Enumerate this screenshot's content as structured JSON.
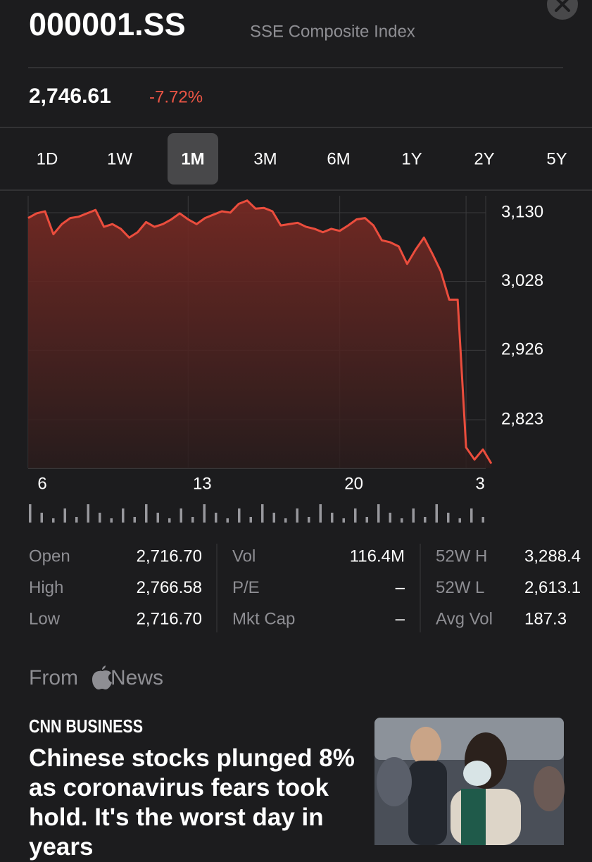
{
  "header": {
    "symbol": "000001.SS",
    "name": "SSE Composite Index",
    "price": "2,746.61",
    "change": "-7.72%"
  },
  "tabs": [
    "1D",
    "1W",
    "1M",
    "3M",
    "6M",
    "1Y",
    "2Y",
    "5Y"
  ],
  "selected_tab": 2,
  "chart_data": {
    "type": "line",
    "fill_area": true,
    "grid": true,
    "x": [
      0,
      1,
      2,
      3,
      4,
      5,
      6,
      7,
      8,
      9,
      10,
      11,
      12,
      13,
      14,
      15,
      16,
      17,
      18,
      19,
      20,
      21,
      22,
      23,
      24,
      25,
      26,
      27,
      28,
      29,
      30,
      31,
      32,
      33,
      34,
      35,
      36,
      37,
      38,
      39,
      40,
      41,
      42,
      43,
      44,
      45,
      46,
      47,
      48,
      49,
      50,
      51,
      52,
      53,
      54,
      55
    ],
    "xlim": [
      0,
      55
    ],
    "xticks": [
      {
        "value": 0,
        "label": "6"
      },
      {
        "value": 19,
        "label": "13"
      },
      {
        "value": 37,
        "label": "20"
      },
      {
        "value": 52,
        "label": "3"
      }
    ],
    "ylim": [
      2751,
      3155
    ],
    "yticks": [
      {
        "value": 3130,
        "label": "3,130"
      },
      {
        "value": 3028,
        "label": "3,028"
      },
      {
        "value": 2926,
        "label": "2,926"
      },
      {
        "value": 2823,
        "label": "2,823"
      }
    ],
    "series": [
      {
        "color": "#eb4d3d",
        "values": [
          3122,
          3129,
          3132,
          3098,
          3113,
          3122,
          3124,
          3129,
          3134,
          3109,
          3113,
          3106,
          3093,
          3101,
          3116,
          3109,
          3113,
          3120,
          3129,
          3120,
          3113,
          3122,
          3127,
          3132,
          3130,
          3143,
          3148,
          3136,
          3137,
          3132,
          3111,
          3113,
          3115,
          3109,
          3106,
          3101,
          3106,
          3103,
          3111,
          3120,
          3122,
          3111,
          3089,
          3086,
          3080,
          3054,
          3075,
          3093,
          3069,
          3043,
          3001,
          3001,
          2782,
          2764,
          2779,
          2758
        ]
      }
    ]
  },
  "stats": [
    [
      {
        "label": "Open",
        "value": "2,716.70"
      },
      {
        "label": "High",
        "value": "2,766.58"
      },
      {
        "label": "Low",
        "value": "2,716.70"
      }
    ],
    [
      {
        "label": "Vol",
        "value": "116.4M"
      },
      {
        "label": "P/E",
        "value": "–"
      },
      {
        "label": "Mkt Cap",
        "value": "–"
      }
    ],
    [
      {
        "label": "52W H",
        "value": "3,288.4"
      },
      {
        "label": "52W L",
        "value": "2,613.1"
      },
      {
        "label": "Avg Vol",
        "value": "187.3"
      }
    ]
  ],
  "news": {
    "from": "From",
    "app": "News",
    "source": "CNN BUSINESS",
    "headline": "Chinese stocks plunged 8% as coronavirus fears took hold. It's the worst day in years"
  }
}
